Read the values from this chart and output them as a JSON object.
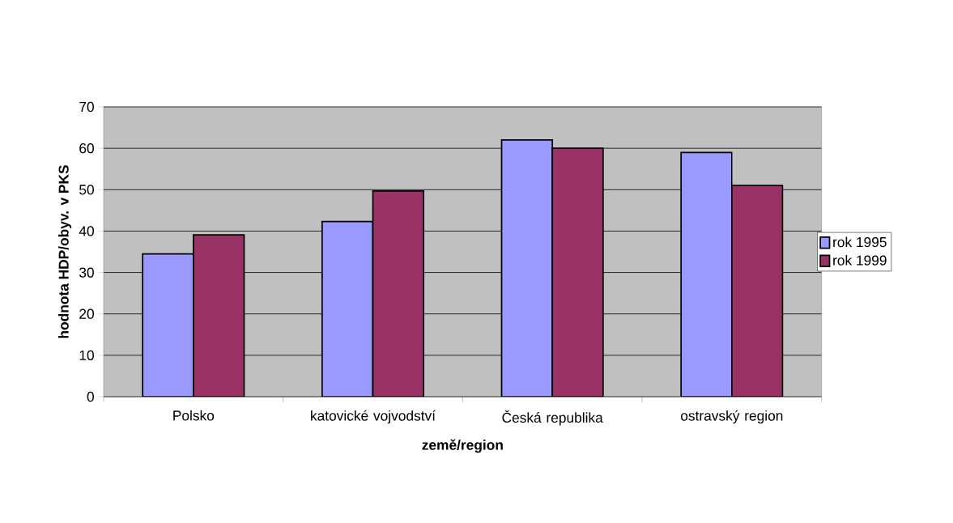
{
  "chart_data": {
    "type": "bar",
    "categories": [
      "Polsko",
      "katovické vojvodství",
      "Česká republika",
      "ostravský region"
    ],
    "series": [
      {
        "name": "rok 1995",
        "color": "#9999ff",
        "values": [
          34.5,
          42.3,
          62.0,
          59.0
        ]
      },
      {
        "name": "rok 1999",
        "color": "#993366",
        "values": [
          39.1,
          49.7,
          60.0,
          51.0
        ]
      }
    ],
    "xlabel": "země/region",
    "ylabel": "hodnota HDP/obyv. v PKS",
    "ylim": [
      0,
      70
    ],
    "yticks": [
      0,
      10,
      20,
      30,
      40,
      50,
      60,
      70
    ],
    "grid": "y",
    "legend": "right"
  }
}
